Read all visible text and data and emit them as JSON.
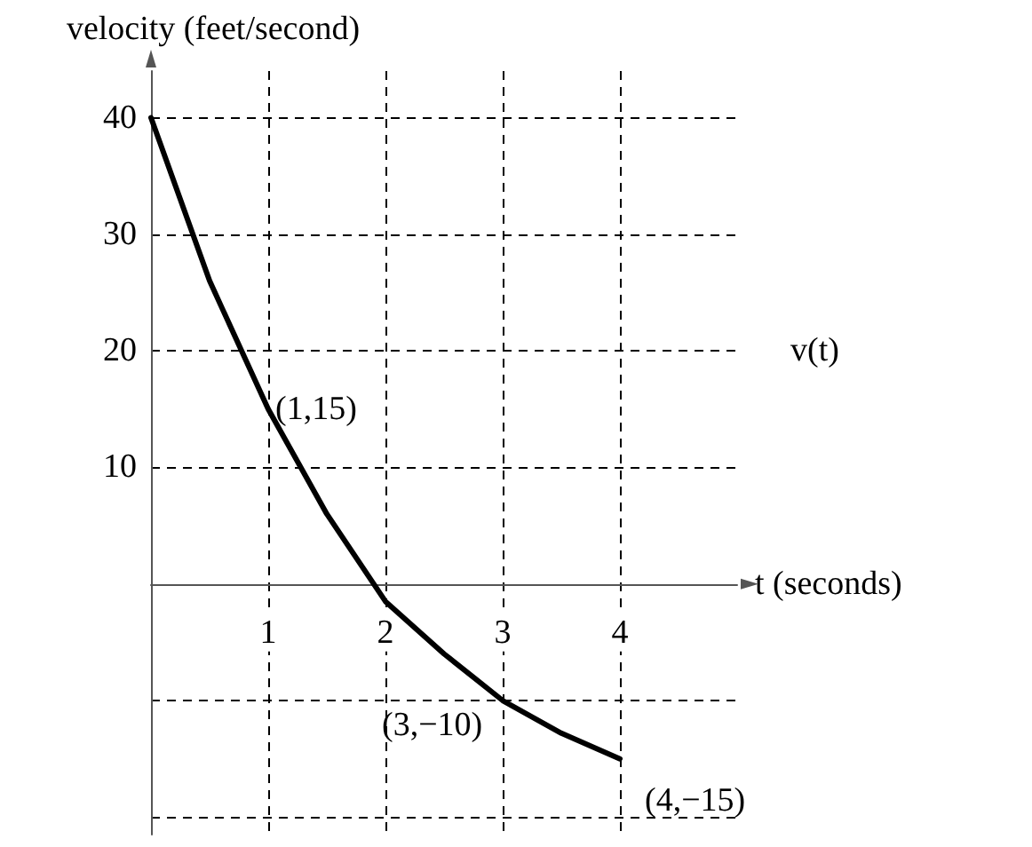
{
  "chart_data": {
    "type": "line",
    "xlabel": "t (seconds)",
    "ylabel": "velocity (feet/second)",
    "x": [
      0,
      0.5,
      1,
      1.5,
      2,
      2.5,
      3,
      3.5,
      4
    ],
    "series": [
      {
        "color": "#000000",
        "values": [
          40,
          26,
          15,
          6,
          -1.5,
          -6,
          -10,
          -12.8,
          -15
        ]
      }
    ],
    "xlim": [
      0,
      5
    ],
    "ylim": [
      -21.5,
      44
    ],
    "xticks": [
      1,
      2,
      3,
      4
    ],
    "yticks": [
      {
        "value": -20,
        "label": null
      },
      {
        "value": -10,
        "label": null
      },
      10,
      20,
      30,
      40
    ],
    "grid": true,
    "marker": "none",
    "line_style": "solid",
    "annotations": [
      "v(t)",
      {
        "text": "(1,15)",
        "x": 1,
        "y": 15
      },
      {
        "text": "(3,−10)",
        "x": 3,
        "y": -10
      },
      {
        "text": "(4,−15)",
        "x": 4,
        "y": -15
      }
    ]
  }
}
